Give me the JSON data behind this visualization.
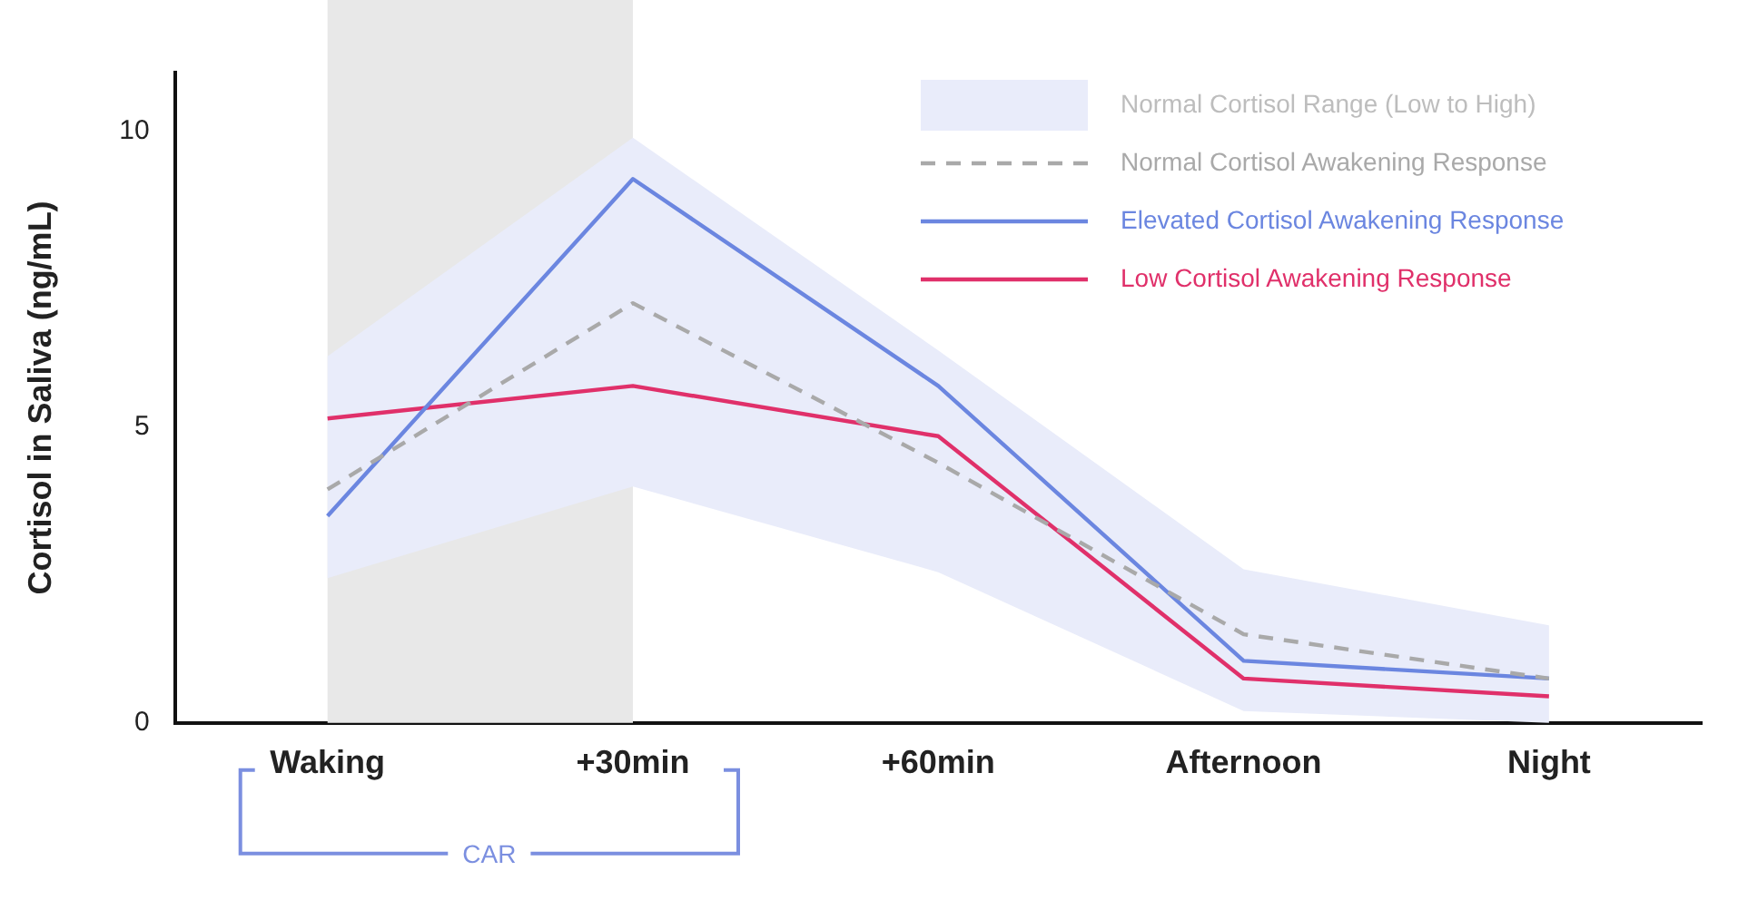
{
  "chart_data": {
    "type": "line",
    "ylabel": "Cortisol in Saliva (ng/mL)",
    "categories": [
      "Waking",
      "+30min",
      "+60min",
      "Afternoon",
      "Night"
    ],
    "series": [
      {
        "name": "Normal Cortisol Awakening Response",
        "type": "line",
        "color": "#a9a9a9",
        "line_style": "dashed",
        "values": [
          3.95,
          7.1,
          4.4,
          1.5,
          0.75
        ],
        "lower": [
          2.45,
          4.0,
          2.55,
          0.2,
          0.0
        ],
        "upper": [
          6.2,
          9.9,
          6.3,
          2.6,
          1.65
        ]
      },
      {
        "name": "Elevated Cortisol Awakening Response",
        "type": "line",
        "color": "#6b86e0",
        "line_style": "solid",
        "values": [
          3.5,
          9.2,
          5.7,
          1.05,
          0.75
        ]
      },
      {
        "name": "Low Cortisol Awakening Response",
        "type": "line",
        "color": "#e0306a",
        "line_style": "solid",
        "values": [
          5.15,
          5.7,
          4.85,
          0.75,
          0.45
        ]
      }
    ],
    "ylim": [
      0,
      11
    ],
    "yticks": [
      0,
      5,
      10
    ],
    "bands": [
      {
        "axis": "x",
        "from": "Waking",
        "to": "+30min",
        "color": "#e8e8e8"
      }
    ],
    "annotations": [
      "CAR",
      "Normal Cortisol Range (Low to High)"
    ],
    "legend": "top right",
    "grid": false,
    "marker": "none"
  }
}
